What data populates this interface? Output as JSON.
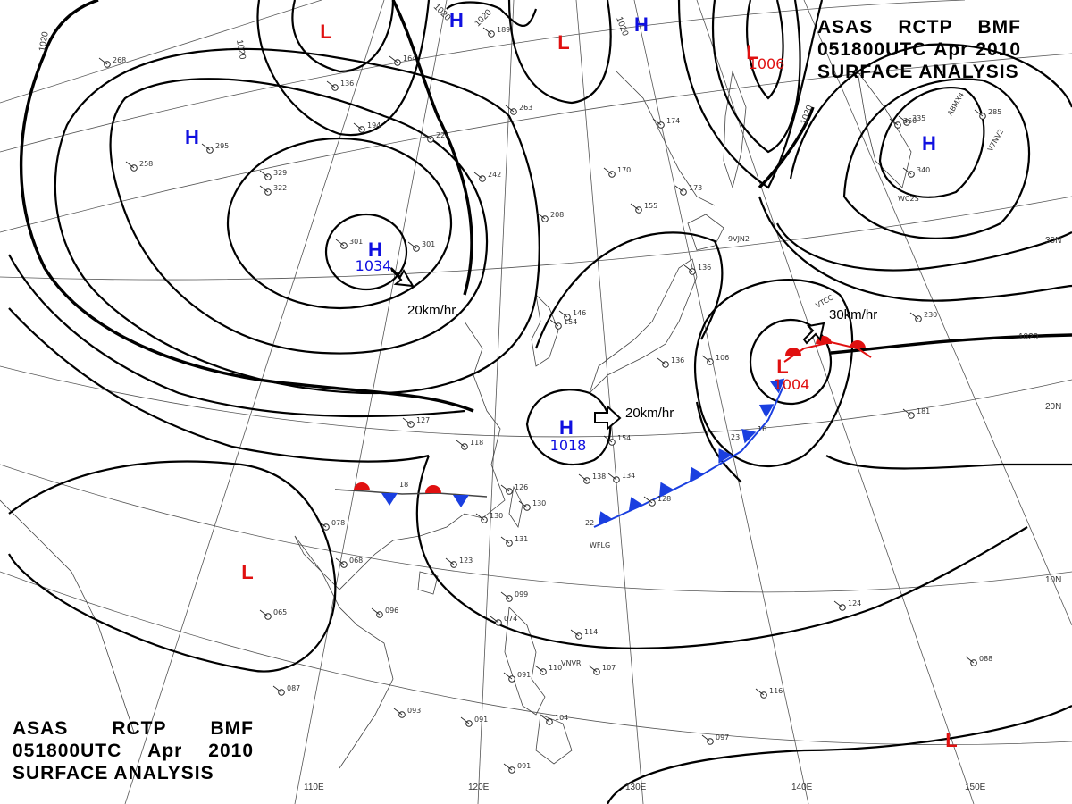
{
  "header_top": {
    "line1": [
      "ASAS",
      "RCTP",
      "BMF"
    ],
    "line2": [
      "051800UTC",
      "Apr",
      "2010"
    ],
    "line3": "SURFACE ANALYSIS"
  },
  "header_bottom": {
    "line1": [
      "ASAS",
      "RCTP",
      "BMF"
    ],
    "line2": [
      "051800UTC",
      "Apr",
      "2010"
    ],
    "line3": "SURFACE ANALYSIS"
  },
  "colors": {
    "high": "#1010e0",
    "low": "#e01010",
    "isobar": "#000000",
    "cold_front": "#1a3fe0",
    "warm_front": "#e01010"
  },
  "pressure_systems": [
    {
      "id": "H-mongolia",
      "type": "H",
      "value": "1034"
    },
    {
      "id": "H-ecs",
      "type": "H",
      "value": "1018"
    },
    {
      "id": "L-nw-pacific",
      "type": "L",
      "value": "1004"
    },
    {
      "id": "L-okhotsk",
      "type": "L",
      "value": "1006"
    },
    {
      "id": "L-baikal",
      "type": "L",
      "value": ""
    },
    {
      "id": "L-manchuria",
      "type": "L",
      "value": ""
    },
    {
      "id": "L-bay-bengal",
      "type": "L",
      "value": ""
    },
    {
      "id": "L-south-pacific",
      "type": "L",
      "value": ""
    },
    {
      "id": "H-west",
      "type": "H",
      "value": ""
    },
    {
      "id": "H-top",
      "type": "H",
      "value": ""
    },
    {
      "id": "H-top2",
      "type": "H",
      "value": ""
    },
    {
      "id": "H-northeast",
      "type": "H",
      "value": ""
    }
  ],
  "motions": [
    {
      "id": "mv-mongolia",
      "text": "20km/hr"
    },
    {
      "id": "mv-ecs",
      "text": "20km/hr"
    },
    {
      "id": "mv-low",
      "text": "30km/hr"
    }
  ],
  "isobar_labels": [
    "1020",
    "1020",
    "1020",
    "1020",
    "1020",
    "1020",
    "1020"
  ],
  "lon_labels": [
    "110E",
    "120E",
    "130E",
    "140E",
    "150E"
  ],
  "lat_labels": [
    "30N",
    "20N",
    "10N"
  ],
  "station_ids": [
    "WFLG",
    "VNVR",
    "ABMX4",
    "V7NV2",
    "WC2S",
    "9VJN2",
    "VTCC"
  ],
  "station_plots": [
    "268",
    "295",
    "258",
    "329",
    "322",
    "301",
    "301",
    "164",
    "136",
    "224",
    "242",
    "194",
    "263",
    "208",
    "170",
    "155",
    "173",
    "174",
    "136",
    "106",
    "154",
    "146",
    "136",
    "154",
    "127",
    "118",
    "126",
    "130",
    "131",
    "130",
    "134",
    "138",
    "128",
    "078",
    "068",
    "065",
    "096",
    "087",
    "093",
    "091",
    "091",
    "099",
    "074",
    "110",
    "114",
    "107",
    "104",
    "116",
    "097",
    "124",
    "181",
    "230",
    "088",
    "335",
    "350",
    "340",
    "285",
    "189",
    "091",
    "123"
  ],
  "fronts": {
    "stationary": "18",
    "cold_front_stations": [
      "22",
      "23",
      "16"
    ]
  }
}
